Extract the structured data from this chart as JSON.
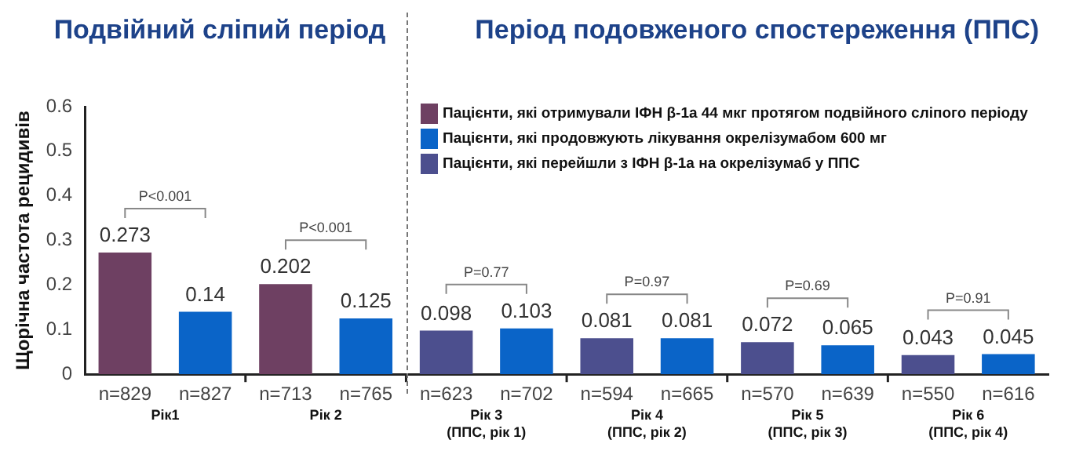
{
  "chart_data": {
    "type": "bar",
    "title": "Подвійний сліпий період",
    "subtitle": "Період подовженого спостереження (ППС)",
    "ylabel": "Щорічна частота рецидивів",
    "categories": [
      "n=829",
      "n=827",
      "n=713",
      "n=765",
      "n=623",
      "n=702",
      "n=594",
      "n=665",
      "n=570",
      "n=639",
      "n=550",
      "n=616"
    ],
    "series": [
      {
        "name": "Пацієнти, які отримували ІФН β-1а 44 мкг протягом подвійного сліпого періоду",
        "color": "#6e4062",
        "values": [
          0.273,
          null,
          0.202,
          null,
          null,
          null,
          null,
          null,
          null,
          null,
          null,
          null
        ]
      },
      {
        "name": "Пацієнти, які продовжують лікування окрелізумабом 600 мг",
        "color": "#0a64c8",
        "values": [
          null,
          0.14,
          null,
          0.125,
          null,
          0.103,
          null,
          0.081,
          null,
          0.065,
          null,
          0.045
        ]
      },
      {
        "name": "Пацієнти, які перейшли з ІФН β-1а на окрелізумаб у ППС",
        "color": "#4c4f8e",
        "values": [
          null,
          null,
          null,
          null,
          0.098,
          null,
          0.081,
          null,
          0.072,
          null,
          0.043,
          null
        ]
      }
    ],
    "ylim": [
      0,
      0.6
    ],
    "yticks": [
      0,
      0.1,
      0.2,
      0.3,
      0.4,
      0.5,
      0.6
    ],
    "grid": false,
    "legend": "top right",
    "data_labels": true,
    "annotations": [
      "P<0.001",
      "P<0.001",
      "P=0.77",
      "P=0.97",
      "P=0.69",
      "P=0.91",
      "Рік1",
      "Рік 2",
      "Рік 3\n(ППС, рік 1)",
      "Рік 4\n(ППС, рік 2)",
      "Рік 5\n(ППС, рік 3)",
      "Рік 6\n(ППС, рік 4)"
    ]
  }
}
